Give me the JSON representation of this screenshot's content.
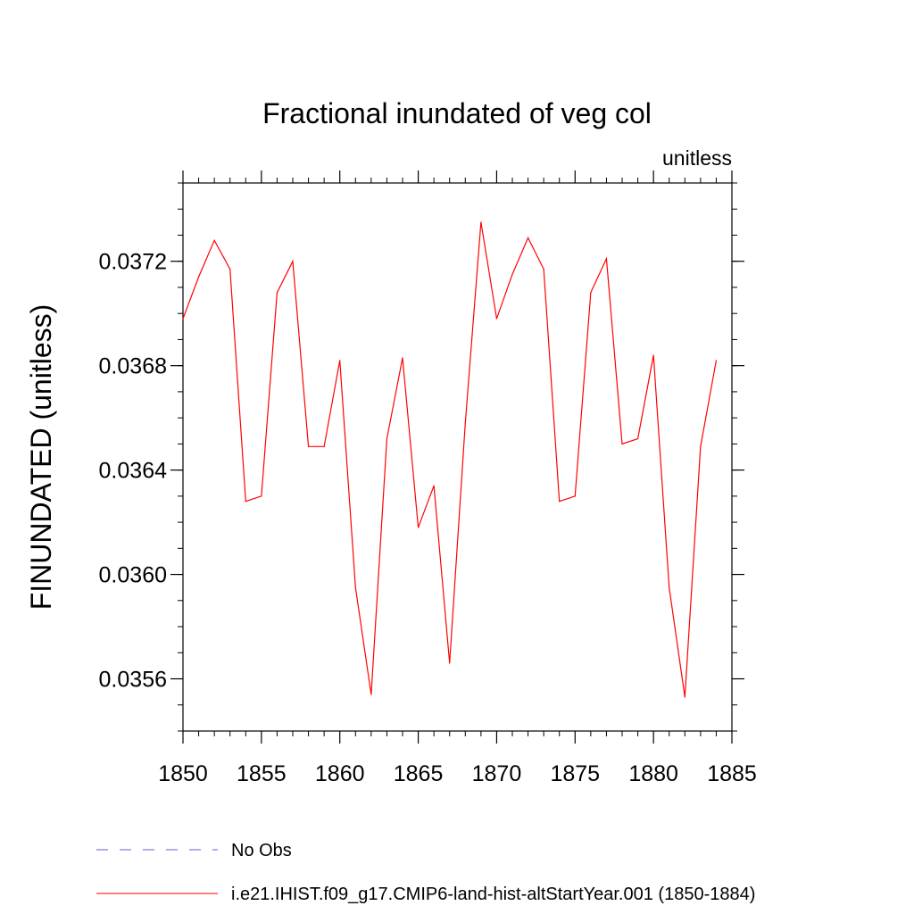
{
  "chart_data": {
    "type": "line",
    "title": "Fractional inundated of veg col",
    "subtitle": "unitless",
    "ylabel": "FINUNDATED  (unitless)",
    "xlabel": "",
    "xlim": [
      1850,
      1885
    ],
    "ylim": [
      0.0354,
      0.0375
    ],
    "x_ticks": [
      1850,
      1855,
      1860,
      1865,
      1870,
      1875,
      1880,
      1885
    ],
    "x_tick_labels": [
      "1850",
      "1855",
      "1860",
      "1865",
      "1870",
      "1875",
      "1880",
      "1885"
    ],
    "y_ticks": [
      0.0356,
      0.036,
      0.0364,
      0.0368,
      0.0372
    ],
    "y_tick_labels": [
      "0.0356",
      "0.0360",
      "0.0364",
      "0.0368",
      "0.0372"
    ],
    "grid": false,
    "legend_position": "bottom",
    "series": [
      {
        "name": "i.e21.IHIST.f09_g17.CMIP6-land-hist-altStartYear.001 (1850-1884)",
        "color": "#ff0000",
        "style": "solid",
        "x": [
          1850,
          1851,
          1852,
          1853,
          1854,
          1855,
          1856,
          1857,
          1858,
          1859,
          1860,
          1861,
          1862,
          1863,
          1864,
          1865,
          1866,
          1867,
          1868,
          1869,
          1870,
          1871,
          1872,
          1873,
          1874,
          1875,
          1876,
          1877,
          1878,
          1879,
          1880,
          1881,
          1882,
          1883,
          1884
        ],
        "values": [
          0.03698,
          0.03714,
          0.03728,
          0.03717,
          0.03628,
          0.0363,
          0.03708,
          0.0372,
          0.03649,
          0.03649,
          0.03682,
          0.03595,
          0.03554,
          0.03652,
          0.03683,
          0.03618,
          0.03634,
          0.03566,
          0.03658,
          0.03735,
          0.03698,
          0.03715,
          0.03729,
          0.03717,
          0.03628,
          0.0363,
          0.03708,
          0.03721,
          0.0365,
          0.03652,
          0.03684,
          0.03595,
          0.03553,
          0.03649,
          0.03682
        ]
      }
    ],
    "legend": [
      {
        "label": "No Obs",
        "color": "#6a5acd",
        "style": "dashed"
      },
      {
        "label": "i.e21.IHIST.f09_g17.CMIP6-land-hist-altStartYear.001 (1850-1884)",
        "color": "#ff0000",
        "style": "solid"
      }
    ]
  }
}
